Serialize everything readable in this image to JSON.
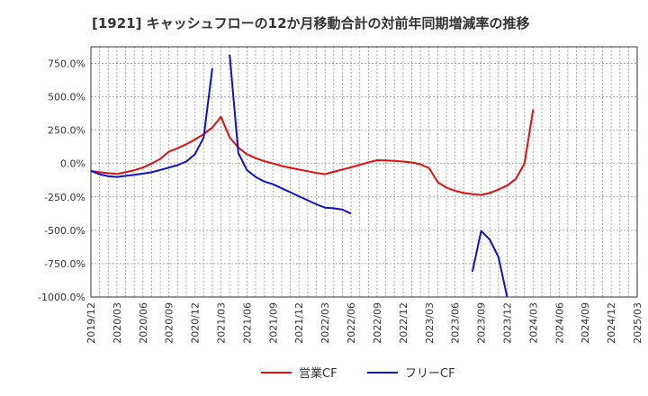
{
  "chart_data": {
    "type": "line",
    "title": "[1921]  キャッシュフローの12か月移動合計の対前年同期増減率の推移",
    "xlabel": "",
    "ylabel": "",
    "ylim": [
      -1000,
      875
    ],
    "yticks": [
      750,
      500,
      250,
      0,
      -250,
      -500,
      -750,
      -1000
    ],
    "ytick_labels": [
      "750.0%",
      "500.0%",
      "250.0%",
      "0.0%",
      "-250.0%",
      "-500.0%",
      "-750.0%",
      "-1000.0%"
    ],
    "x_start": "2019/12",
    "x_end": "2025/03",
    "xtick_labels": [
      "2019/12",
      "2020/03",
      "2020/06",
      "2020/09",
      "2020/12",
      "2021/03",
      "2021/06",
      "2021/09",
      "2021/12",
      "2022/03",
      "2022/06",
      "2022/09",
      "2022/12",
      "2023/03",
      "2023/06",
      "2023/09",
      "2023/12",
      "2024/03",
      "2024/06",
      "2024/09",
      "2024/12",
      "2025/03"
    ],
    "grid": true,
    "legend_position": "bottom-center",
    "series": [
      {
        "name": "営業CF",
        "color": "#dd1111",
        "points": [
          [
            "2019/12",
            -55
          ],
          [
            "2020/01",
            -65
          ],
          [
            "2020/02",
            -72
          ],
          [
            "2020/03",
            -78
          ],
          [
            "2020/04",
            -65
          ],
          [
            "2020/05",
            -50
          ],
          [
            "2020/06",
            -30
          ],
          [
            "2020/07",
            0
          ],
          [
            "2020/08",
            35
          ],
          [
            "2020/09",
            90
          ],
          [
            "2020/10",
            115
          ],
          [
            "2020/11",
            145
          ],
          [
            "2020/12",
            180
          ],
          [
            "2021/01",
            220
          ],
          [
            "2021/02",
            270
          ],
          [
            "2021/03",
            350
          ],
          [
            "2021/04",
            195
          ],
          [
            "2021/05",
            120
          ],
          [
            "2021/06",
            70
          ],
          [
            "2021/07",
            40
          ],
          [
            "2021/08",
            18
          ],
          [
            "2021/09",
            0
          ],
          [
            "2021/10",
            -18
          ],
          [
            "2021/11",
            -32
          ],
          [
            "2021/12",
            -45
          ],
          [
            "2022/01",
            -58
          ],
          [
            "2022/02",
            -70
          ],
          [
            "2022/03",
            -80
          ],
          [
            "2022/04",
            -62
          ],
          [
            "2022/05",
            -45
          ],
          [
            "2022/06",
            -28
          ],
          [
            "2022/07",
            -10
          ],
          [
            "2022/08",
            8
          ],
          [
            "2022/09",
            25
          ],
          [
            "2022/10",
            23
          ],
          [
            "2022/11",
            20
          ],
          [
            "2022/12",
            15
          ],
          [
            "2023/01",
            8
          ],
          [
            "2023/02",
            -5
          ],
          [
            "2023/03",
            -35
          ],
          [
            "2023/04",
            -140
          ],
          [
            "2023/05",
            -180
          ],
          [
            "2023/06",
            -205
          ],
          [
            "2023/07",
            -220
          ],
          [
            "2023/08",
            -230
          ],
          [
            "2023/09",
            -235
          ],
          [
            "2023/10",
            -220
          ],
          [
            "2023/11",
            -195
          ],
          [
            "2023/12",
            -165
          ],
          [
            "2024/01",
            -115
          ],
          [
            "2024/02",
            0
          ],
          [
            "2024/03",
            405
          ]
        ]
      },
      {
        "name": "フリーCF",
        "color": "#1111cc",
        "points": [
          [
            "2019/12",
            -55
          ],
          [
            "2020/01",
            -80
          ],
          [
            "2020/02",
            -95
          ],
          [
            "2020/03",
            -100
          ],
          [
            "2020/04",
            -92
          ],
          [
            "2020/05",
            -85
          ],
          [
            "2020/06",
            -75
          ],
          [
            "2020/07",
            -65
          ],
          [
            "2020/08",
            -48
          ],
          [
            "2020/09",
            -30
          ],
          [
            "2020/10",
            -12
          ],
          [
            "2020/11",
            15
          ],
          [
            "2020/12",
            70
          ],
          [
            "2021/01",
            195
          ],
          [
            "2021/02",
            715
          ],
          null,
          [
            "2021/04",
            815
          ],
          [
            "2021/05",
            80
          ],
          [
            "2021/06",
            -50
          ],
          [
            "2021/07",
            -100
          ],
          [
            "2021/08",
            -135
          ],
          [
            "2021/09",
            -155
          ],
          [
            "2021/10",
            -185
          ],
          [
            "2021/11",
            -215
          ],
          [
            "2021/12",
            -245
          ],
          [
            "2022/01",
            -275
          ],
          [
            "2022/02",
            -305
          ],
          [
            "2022/03",
            -330
          ],
          [
            "2022/04",
            -335
          ],
          [
            "2022/05",
            -345
          ],
          [
            "2022/06",
            -375
          ],
          null,
          null,
          null,
          null,
          null,
          null,
          null,
          null,
          null,
          null,
          null,
          null,
          null,
          null,
          [
            "2023/08",
            -810
          ],
          [
            "2023/09",
            -505
          ],
          [
            "2023/10",
            -570
          ],
          [
            "2023/11",
            -700
          ],
          [
            "2023/12",
            -1000
          ]
        ]
      }
    ]
  }
}
